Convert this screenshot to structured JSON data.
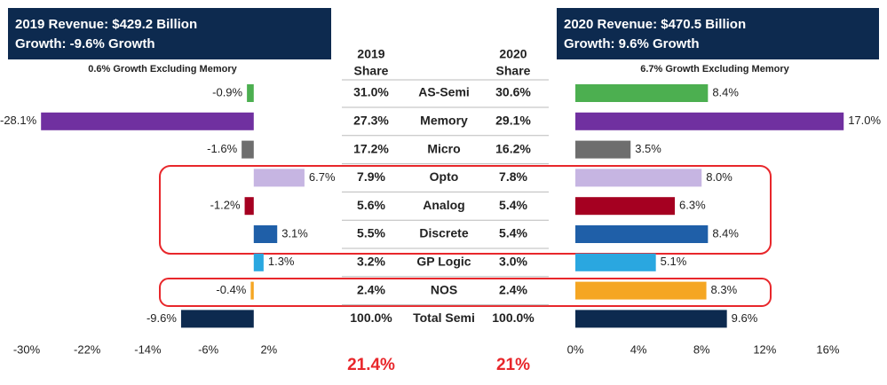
{
  "chart_data": [
    {
      "type": "bar",
      "orientation": "horizontal",
      "title": "2019 Revenue: $429.2 Billion",
      "subtitle": "Growth: -9.6% Growth",
      "annotation": "0.6% Growth Excluding Memory",
      "values": [
        -0.9,
        -28.1,
        -1.6,
        6.7,
        -1.2,
        3.1,
        1.3,
        -0.4,
        -9.6
      ],
      "value_labels": [
        "-0.9%",
        "-28.1%",
        "-1.6%",
        "6.7%",
        "-1.2%",
        "3.1%",
        "1.3%",
        "-0.4%",
        "-9.6%"
      ],
      "colors": [
        "#4caf50",
        "#7030a0",
        "#6e6e6e",
        "#c6b5e2",
        "#a50021",
        "#1f5fa8",
        "#2aa7e0",
        "#f5a623",
        "#0d2a4f"
      ],
      "xlim": [
        -30,
        8
      ],
      "xticks": [
        {
          "value": -30,
          "label": "-30%"
        },
        {
          "value": -22,
          "label": "-22%"
        },
        {
          "value": -14,
          "label": "-14%"
        },
        {
          "value": -6,
          "label": "-6%"
        },
        {
          "value": 2,
          "label": "2%"
        }
      ]
    },
    {
      "type": "bar",
      "orientation": "horizontal",
      "title": "2020 Revenue: $470.5 Billion",
      "subtitle": "Growth: 9.6% Growth",
      "annotation": "6.7% Growth Excluding Memory",
      "values": [
        8.4,
        17.0,
        3.5,
        8.0,
        6.3,
        8.4,
        5.1,
        8.3,
        9.6
      ],
      "value_labels": [
        "8.4%",
        "17.0%",
        "3.5%",
        "8.0%",
        "6.3%",
        "8.4%",
        "5.1%",
        "8.3%",
        "9.6%"
      ],
      "colors": [
        "#4caf50",
        "#7030a0",
        "#6e6e6e",
        "#c6b5e2",
        "#a50021",
        "#1f5fa8",
        "#2aa7e0",
        "#f5a623",
        "#0d2a4f"
      ],
      "xlim": [
        0,
        18
      ],
      "xticks": [
        {
          "value": 0,
          "label": "0%"
        },
        {
          "value": 4,
          "label": "4%"
        },
        {
          "value": 8,
          "label": "8%"
        },
        {
          "value": 12,
          "label": "12%"
        },
        {
          "value": 16,
          "label": "16%"
        }
      ]
    }
  ],
  "share_table": {
    "headers": [
      [
        "2019",
        "Share"
      ],
      [
        "2020",
        "Share"
      ]
    ],
    "rows": [
      [
        "31.0%",
        "AS-Semi",
        "30.6%"
      ],
      [
        "27.3%",
        "Memory",
        "29.1%"
      ],
      [
        "17.2%",
        "Micro",
        "16.2%"
      ],
      [
        "7.9%",
        "Opto",
        "7.8%"
      ],
      [
        "5.6%",
        "Analog",
        "5.4%"
      ],
      [
        "5.5%",
        "Discrete",
        "5.4%"
      ],
      [
        "3.2%",
        "GP Logic",
        "3.0%"
      ],
      [
        "2.4%",
        "NOS",
        "2.4%"
      ],
      [
        "100.0%",
        "Total Semi",
        "100.0%"
      ]
    ],
    "totals": [
      "21.4%",
      "21%"
    ]
  }
}
